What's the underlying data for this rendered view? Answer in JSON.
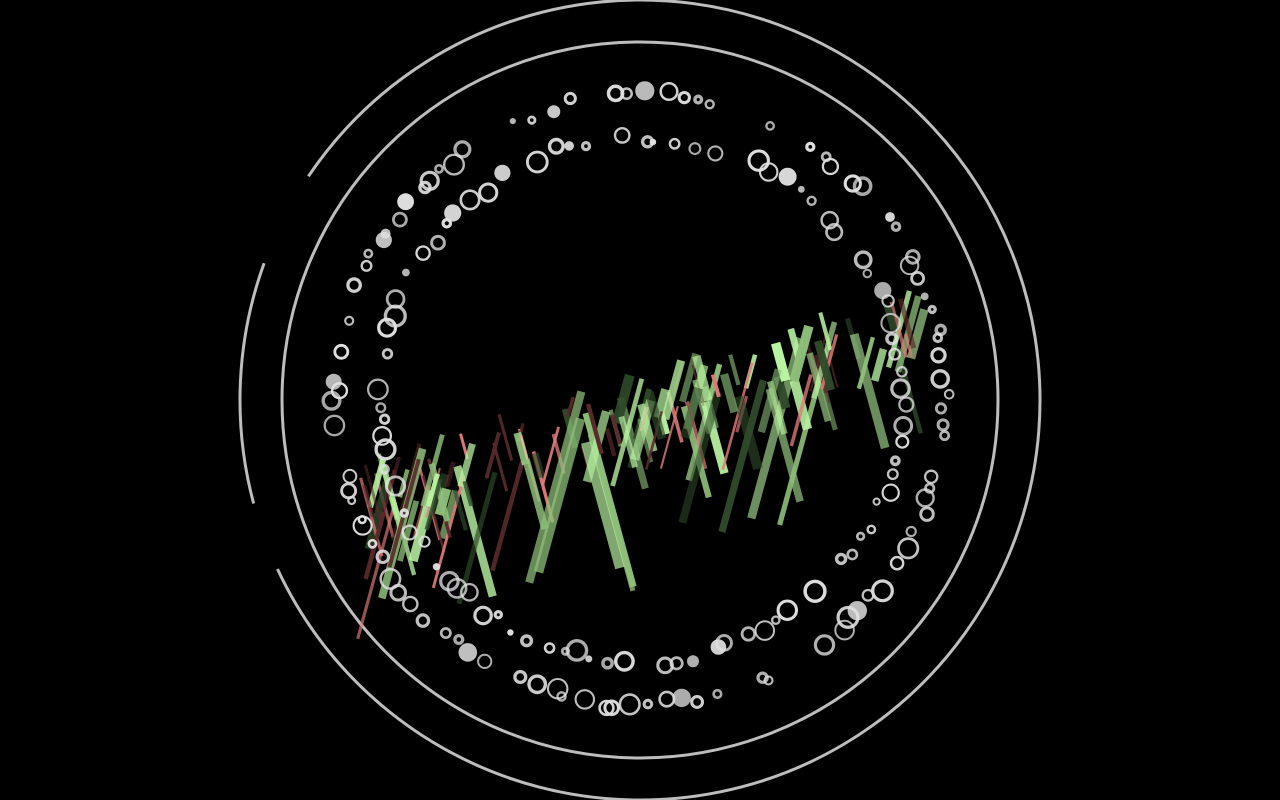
{
  "scene": {
    "background": "#000000",
    "ring_color": "#bdbdbd",
    "bubble_color": "#e0e0e0",
    "bar_colors": {
      "light_green": "#b9f2a1",
      "mid_green": "#8fbf7a",
      "dark_green": "#2f4a2a",
      "pink": "#e07a7a",
      "dark_red": "#5a2a2a"
    }
  }
}
